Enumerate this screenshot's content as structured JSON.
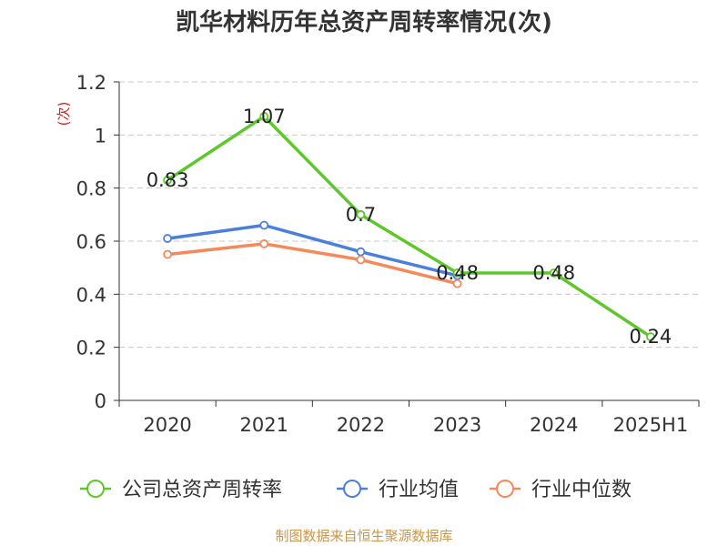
{
  "chart_data": {
    "type": "line",
    "title": "凯华材料历年总资产周转率情况(次)",
    "ylabel": "(次)",
    "xlabel": "",
    "categories": [
      "2020",
      "2021",
      "2022",
      "2023",
      "2024",
      "2025H1"
    ],
    "ylim": [
      0,
      1.2
    ],
    "yticks": [
      "0",
      "0.2",
      "0.4",
      "0.6",
      "0.8",
      "1",
      "1.2"
    ],
    "grid": true,
    "legend_position": "bottom",
    "series": [
      {
        "name": "公司总资产周转率",
        "color": "#5ec72c",
        "values": [
          0.83,
          1.07,
          0.7,
          0.48,
          0.48,
          0.24
        ],
        "labels": [
          "0.83",
          "1.07",
          "0.7",
          "0.48",
          "0.48",
          "0.24"
        ]
      },
      {
        "name": "行业均值",
        "color": "#4a7fdc",
        "values": [
          0.61,
          0.66,
          0.56,
          0.47,
          null,
          null
        ]
      },
      {
        "name": "行业中位数",
        "color": "#f5895a",
        "values": [
          0.55,
          0.59,
          0.53,
          0.44,
          null,
          null
        ]
      }
    ]
  },
  "footer": "制图数据来自恒生聚源数据库"
}
